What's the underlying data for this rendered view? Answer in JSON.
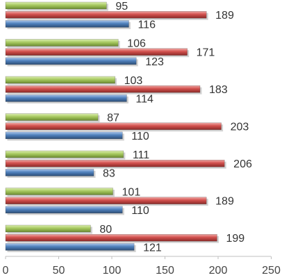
{
  "chart_data": {
    "type": "bar",
    "orientation": "horizontal",
    "categories": [
      "",
      "",
      "",
      "",
      "",
      "",
      ""
    ],
    "series": [
      {
        "color": "#4f81bd",
        "values": [
          116,
          123,
          114,
          110,
          83,
          110,
          121
        ]
      },
      {
        "color": "#c0504d",
        "values": [
          189,
          171,
          183,
          203,
          206,
          189,
          199
        ]
      },
      {
        "color": "#9bbb59",
        "values": [
          95,
          106,
          103,
          87,
          111,
          101,
          80
        ]
      }
    ],
    "xlim": [
      0,
      250
    ],
    "xticks": [
      "0",
      "50",
      "100",
      "150",
      "200",
      "250"
    ],
    "grid": false,
    "legend": "none",
    "title": "",
    "xlabel": "",
    "ylabel": ""
  }
}
